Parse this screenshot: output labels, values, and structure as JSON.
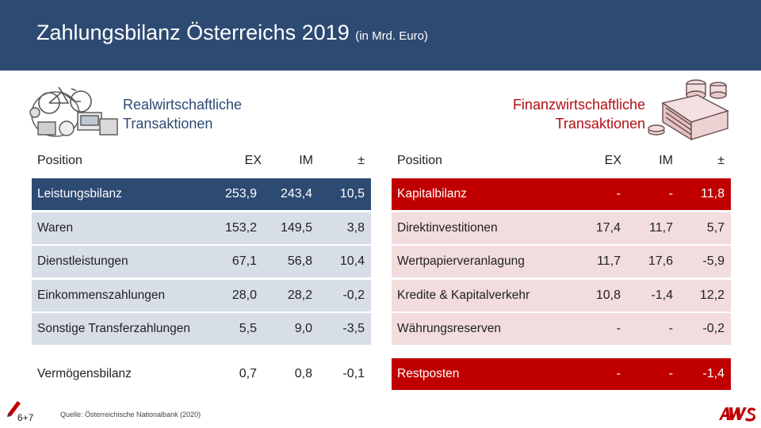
{
  "header": {
    "title": "Zahlungsbilanz Österreichs 2019",
    "unit": "(in Mrd. Euro)"
  },
  "left": {
    "section_title_line1": "Realwirtschaftliche",
    "section_title_line2": "Transaktionen",
    "columns": {
      "position": "Position",
      "ex": "EX",
      "im": "IM",
      "diff": "±"
    },
    "rows": [
      {
        "label": "Leistungsbilanz",
        "ex": "253,9",
        "im": "243,4",
        "diff": "10,5"
      },
      {
        "label": "Waren",
        "ex": "153,2",
        "im": "149,5",
        "diff": "3,8"
      },
      {
        "label": "Dienstleistungen",
        "ex": "67,1",
        "im": "56,8",
        "diff": "10,4"
      },
      {
        "label": "Einkommenszahlungen",
        "ex": "28,0",
        "im": "28,2",
        "diff": "-0,2"
      },
      {
        "label": "Sonstige Transferzahlungen",
        "ex": "5,5",
        "im": "9,0",
        "diff": "-3,5"
      },
      {
        "label": "Vermögensbilanz",
        "ex": "0,7",
        "im": "0,8",
        "diff": "-0,1"
      }
    ]
  },
  "right": {
    "section_title_line1": "Finanzwirtschaftliche",
    "section_title_line2": "Transaktionen",
    "columns": {
      "position": "Position",
      "ex": "EX",
      "im": "IM",
      "diff": "±"
    },
    "rows": [
      {
        "label": "Kapitalbilanz",
        "ex": "-",
        "im": "-",
        "diff": "11,8"
      },
      {
        "label": "Direktinvestitionen",
        "ex": "17,4",
        "im": "11,7",
        "diff": "5,7"
      },
      {
        "label": "Wertpapierveranlagung",
        "ex": "11,7",
        "im": "17,6",
        "diff": "-5,9"
      },
      {
        "label": "Kredite & Kapitalverkehr",
        "ex": "10,8",
        "im": "-1,4",
        "diff": "12,2"
      },
      {
        "label": "Währungsreserven",
        "ex": "-",
        "im": "-",
        "diff": "-0,2"
      },
      {
        "label": "Restposten",
        "ex": "-",
        "im": "-",
        "diff": "-1,4"
      }
    ]
  },
  "footer": {
    "source": "Quelle: Österreichische Nationalbank (2020)",
    "page": "6+7"
  },
  "colors": {
    "navy": "#2d4a73",
    "red": "#c00000",
    "light_blue": "#d7dee8",
    "light_red": "#f2dcdd"
  },
  "icons": [
    "bicycle-goods-icon",
    "money-coins-icon",
    "pencil-icon",
    "aws-logo"
  ]
}
